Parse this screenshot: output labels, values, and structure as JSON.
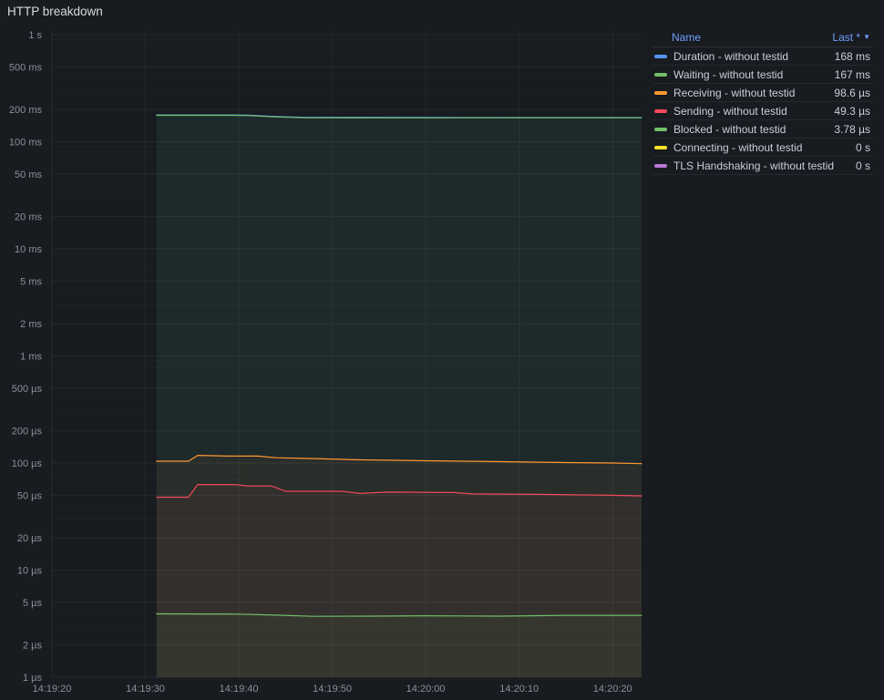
{
  "panel": {
    "title": "HTTP breakdown"
  },
  "legend": {
    "columns": {
      "name": "Name",
      "value": "Last *"
    },
    "rows": [
      {
        "label": "Duration - without testid",
        "value": "168 ms",
        "color": "#5794F2"
      },
      {
        "label": "Waiting - without testid",
        "value": "167 ms",
        "color": "#73BF69"
      },
      {
        "label": "Receiving - without testid",
        "value": "98.6 µs",
        "color": "#FF9830"
      },
      {
        "label": "Sending - without testid",
        "value": "49.3 µs",
        "color": "#F2495C"
      },
      {
        "label": "Blocked - without testid",
        "value": "3.78 µs",
        "color": "#73BF69"
      },
      {
        "label": "Connecting - without testid",
        "value": "0 s",
        "color": "#FADE2A"
      },
      {
        "label": "TLS Handshaking - without testid",
        "value": "0 s",
        "color": "#B877D9"
      }
    ]
  },
  "chart_data": {
    "type": "line",
    "title": "HTTP breakdown",
    "y_scale": "log",
    "legend_position": "right",
    "grid": true,
    "x_range_seconds": [
      0,
      63.1
    ],
    "x_start_label": "14:19:20",
    "y_range_seconds": [
      1e-06,
      1
    ],
    "y_ticks": [
      {
        "label": "1 s",
        "value": 1
      },
      {
        "label": "500 ms",
        "value": 0.5
      },
      {
        "label": "200 ms",
        "value": 0.2
      },
      {
        "label": "100 ms",
        "value": 0.1
      },
      {
        "label": "50 ms",
        "value": 0.05
      },
      {
        "label": "20 ms",
        "value": 0.02
      },
      {
        "label": "10 ms",
        "value": 0.01
      },
      {
        "label": "5 ms",
        "value": 0.005
      },
      {
        "label": "2 ms",
        "value": 0.002
      },
      {
        "label": "1 ms",
        "value": 0.001
      },
      {
        "label": "500 µs",
        "value": 0.0005
      },
      {
        "label": "200 µs",
        "value": 0.0002
      },
      {
        "label": "100 µs",
        "value": 0.0001
      },
      {
        "label": "50 µs",
        "value": 5e-05
      },
      {
        "label": "20 µs",
        "value": 2e-05
      },
      {
        "label": "10 µs",
        "value": 1e-05
      },
      {
        "label": "5 µs",
        "value": 5e-06
      },
      {
        "label": "2 µs",
        "value": 2e-06
      },
      {
        "label": "1 µs",
        "value": 1e-06
      }
    ],
    "x_ticks": [
      {
        "label": "14:19:20",
        "t": 0
      },
      {
        "label": "14:19:30",
        "t": 10
      },
      {
        "label": "14:19:40",
        "t": 20
      },
      {
        "label": "14:19:50",
        "t": 30
      },
      {
        "label": "14:20:00",
        "t": 40
      },
      {
        "label": "14:20:10",
        "t": 50
      },
      {
        "label": "14:20:20",
        "t": 60
      }
    ],
    "series": [
      {
        "name": "Duration - without testid",
        "color": "#5794F2",
        "last": "168 ms",
        "points": [
          [
            11.2,
            0.178
          ],
          [
            19,
            0.178
          ],
          [
            21,
            0.177
          ],
          [
            24,
            0.172
          ],
          [
            27,
            0.169
          ],
          [
            40,
            0.1685
          ],
          [
            55,
            0.168
          ],
          [
            63.1,
            0.168
          ]
        ]
      },
      {
        "name": "Waiting - without testid",
        "color": "#73BF69",
        "last": "167 ms",
        "points": [
          [
            11.2,
            0.1765
          ],
          [
            19,
            0.1765
          ],
          [
            21,
            0.1755
          ],
          [
            24,
            0.1705
          ],
          [
            27,
            0.1675
          ],
          [
            40,
            0.1672
          ],
          [
            55,
            0.167
          ],
          [
            63.1,
            0.167
          ]
        ]
      },
      {
        "name": "Receiving - without testid",
        "color": "#FF9830",
        "last": "98.6 µs",
        "points": [
          [
            11.2,
            0.000104
          ],
          [
            14.6,
            0.000104
          ],
          [
            15.6,
            0.000118
          ],
          [
            19,
            0.000116
          ],
          [
            22,
            0.000116
          ],
          [
            24,
            0.000112
          ],
          [
            28,
            0.00011
          ],
          [
            33,
            0.000107
          ],
          [
            40,
            0.000105
          ],
          [
            48,
            0.000103
          ],
          [
            55,
            0.000101
          ],
          [
            60,
            0.0001
          ],
          [
            63.1,
            9.86e-05
          ]
        ]
      },
      {
        "name": "Sending - without testid",
        "color": "#F2495C",
        "last": "49.3 µs",
        "points": [
          [
            11.2,
            4.8e-05
          ],
          [
            14.6,
            4.8e-05
          ],
          [
            15.6,
            6.3e-05
          ],
          [
            19.5,
            6.3e-05
          ],
          [
            21,
            6.1e-05
          ],
          [
            23.5,
            6.1e-05
          ],
          [
            25,
            5.45e-05
          ],
          [
            31,
            5.45e-05
          ],
          [
            33,
            5.2e-05
          ],
          [
            36,
            5.35e-05
          ],
          [
            43,
            5.3e-05
          ],
          [
            45,
            5.15e-05
          ],
          [
            52,
            5.1e-05
          ],
          [
            56,
            5.05e-05
          ],
          [
            60,
            5e-05
          ],
          [
            63.1,
            4.93e-05
          ]
        ]
      },
      {
        "name": "Blocked - without testid",
        "color": "#73BF69",
        "last": "3.78 µs",
        "points": [
          [
            11.2,
            3.9e-06
          ],
          [
            20,
            3.88e-06
          ],
          [
            24,
            3.8e-06
          ],
          [
            28,
            3.7e-06
          ],
          [
            34,
            3.72e-06
          ],
          [
            40,
            3.75e-06
          ],
          [
            48,
            3.72e-06
          ],
          [
            55,
            3.78e-06
          ],
          [
            63.1,
            3.78e-06
          ]
        ]
      },
      {
        "name": "Connecting - without testid",
        "color": "#FADE2A",
        "last": "0 s",
        "points": []
      },
      {
        "name": "TLS Handshaking - without testid",
        "color": "#B877D9",
        "last": "0 s",
        "points": []
      }
    ]
  }
}
